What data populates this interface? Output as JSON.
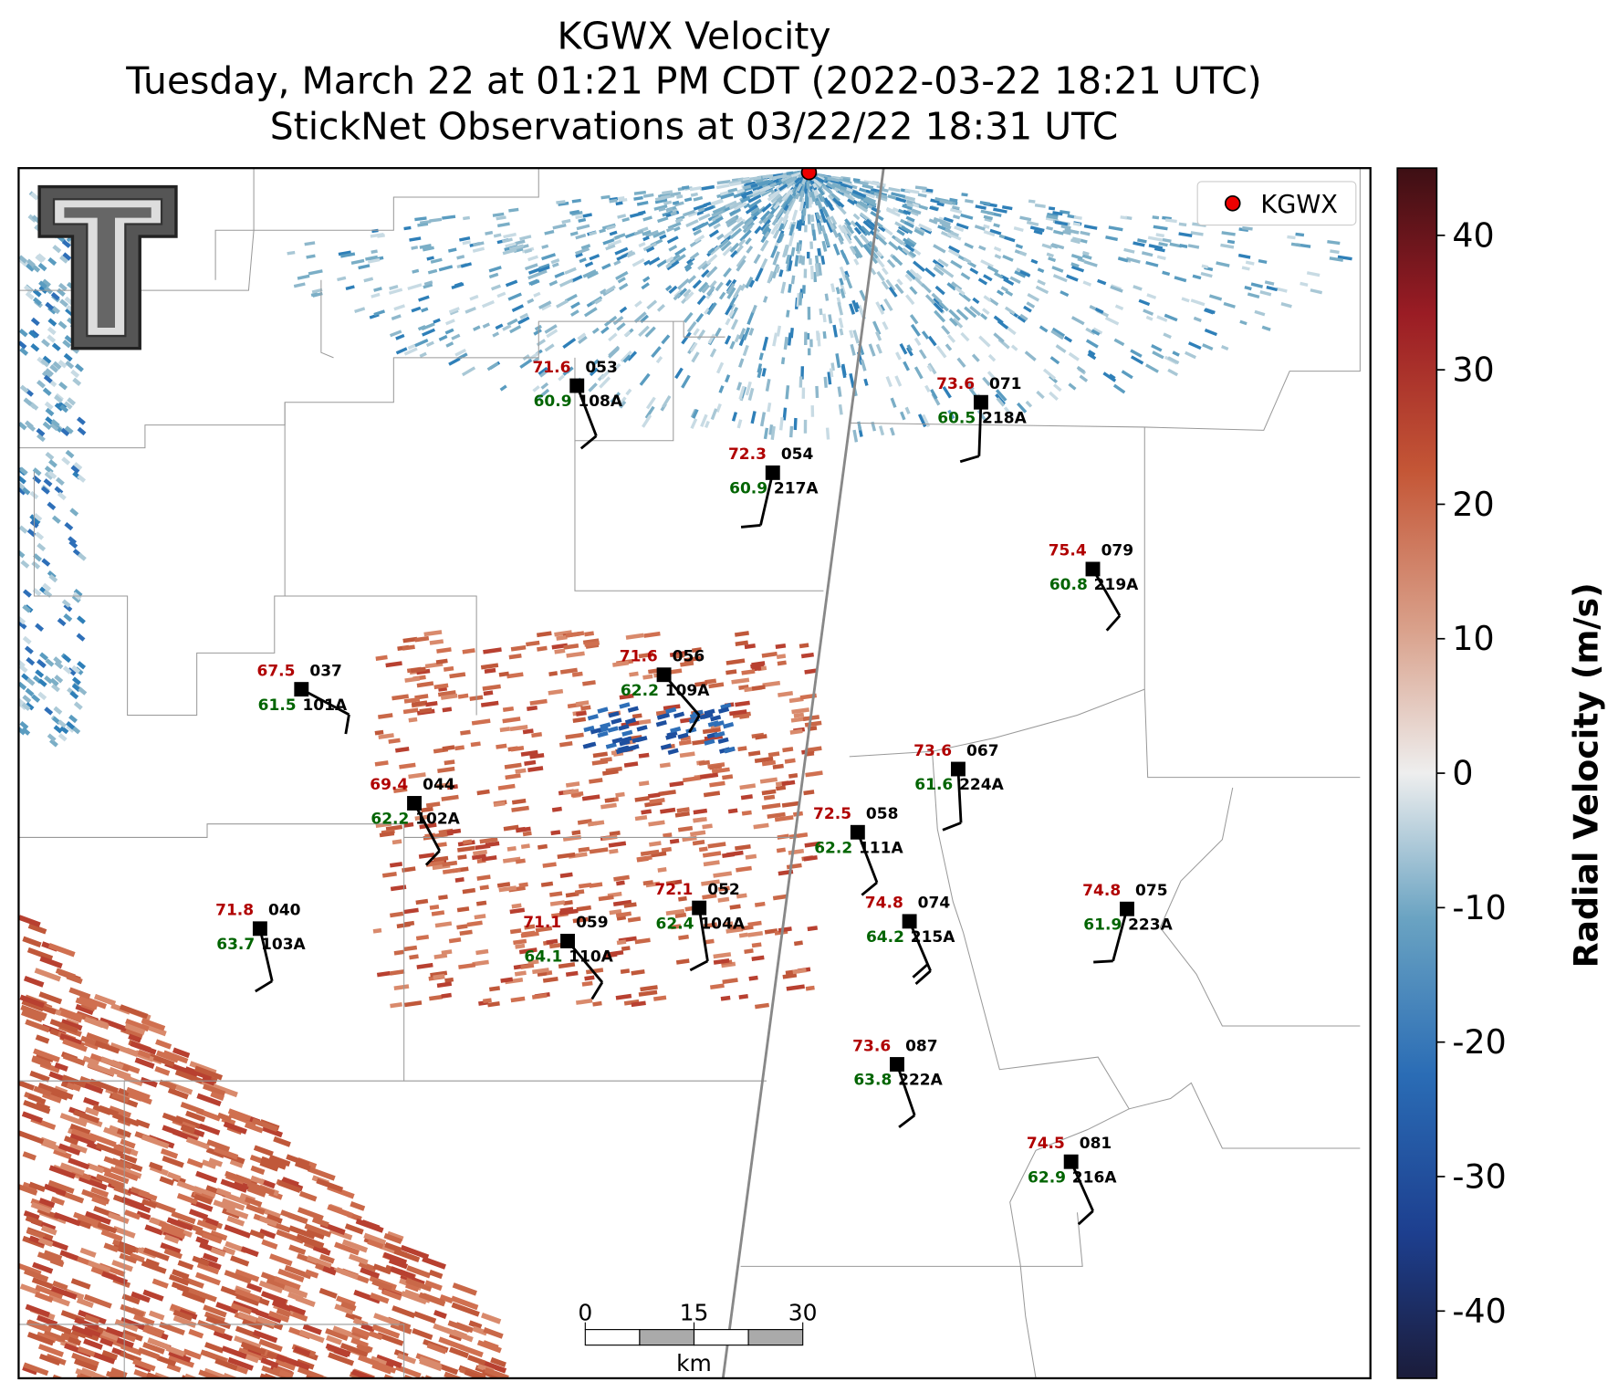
{
  "title_lines": [
    "KGWX Velocity",
    "Tuesday, March 22 at 01:21 PM CDT (2022-03-22 18:21 UTC)",
    "StickNet Observations at 03/22/22 18:31 UTC"
  ],
  "legend": {
    "label": "KGWX"
  },
  "colorbar": {
    "label": "Radial Velocity (m/s)",
    "lim": [
      -45,
      45
    ],
    "ticks": [
      -40,
      -30,
      -20,
      -10,
      0,
      10,
      20,
      30,
      40
    ]
  },
  "scale_bar": {
    "ticks": [
      0,
      15,
      30
    ],
    "unit": "km"
  },
  "stations": [
    {
      "number": "053",
      "id": "108A",
      "temp": "71.6",
      "dew": "60.9",
      "wind_dir": 159,
      "wind_kt": 10
    },
    {
      "number": "054",
      "id": "217A",
      "temp": "72.3",
      "dew": "60.9",
      "wind_dir": 193,
      "wind_kt": 10
    },
    {
      "number": "071",
      "id": "218A",
      "temp": "73.6",
      "dew": "60.5",
      "wind_dir": 182,
      "wind_kt": 10
    },
    {
      "number": "079",
      "id": "219A",
      "temp": "75.4",
      "dew": "60.8",
      "wind_dir": 150,
      "wind_kt": 10
    },
    {
      "number": "056",
      "id": "109A",
      "temp": "71.6",
      "dew": "62.2",
      "wind_dir": 139,
      "wind_kt": 10
    },
    {
      "number": "037",
      "id": "101A",
      "temp": "67.5",
      "dew": "61.5",
      "wind_dir": 118,
      "wind_kt": 10
    },
    {
      "number": "067",
      "id": "224A",
      "temp": "73.6",
      "dew": "61.6",
      "wind_dir": 177,
      "wind_kt": 10
    },
    {
      "number": "044",
      "id": "102A",
      "temp": "69.4",
      "dew": "62.2",
      "wind_dir": 152,
      "wind_kt": 10
    },
    {
      "number": "058",
      "id": "111A",
      "temp": "72.5",
      "dew": "62.2",
      "wind_dir": 159,
      "wind_kt": 10
    },
    {
      "number": "040",
      "id": "103A",
      "temp": "71.8",
      "dew": "63.7",
      "wind_dir": 167,
      "wind_kt": 10
    },
    {
      "number": "052",
      "id": "104A",
      "temp": "72.1",
      "dew": "62.4",
      "wind_dir": 171,
      "wind_kt": 10
    },
    {
      "number": "074",
      "id": "215A",
      "temp": "74.8",
      "dew": "64.2",
      "wind_dir": 157,
      "wind_kt": 20
    },
    {
      "number": "075",
      "id": "223A",
      "temp": "74.8",
      "dew": "61.9",
      "wind_dir": 195,
      "wind_kt": 10
    },
    {
      "number": "059",
      "id": "110A",
      "temp": "71.1",
      "dew": "64.1",
      "wind_dir": 140,
      "wind_kt": 10
    },
    {
      "number": "087",
      "id": "222A",
      "temp": "73.6",
      "dew": "63.8",
      "wind_dir": 161,
      "wind_kt": 10
    },
    {
      "number": "081",
      "id": "216A",
      "temp": "74.5",
      "dew": "62.9",
      "wind_dir": 156,
      "wind_kt": 10
    }
  ]
}
